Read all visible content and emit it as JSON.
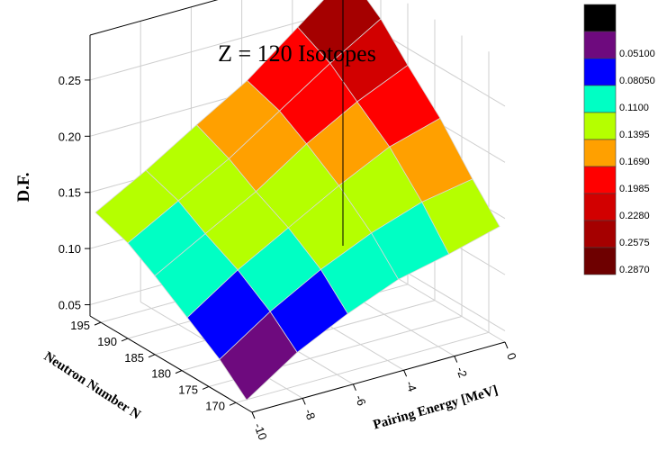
{
  "chart_data": {
    "type": "surface3d",
    "title": "Z = 120 Isotopes",
    "zlabel": "D.F.",
    "xlabel": "Pairing Energy [MeV]",
    "ylabel": "Neutron Number N",
    "x_ticks": [
      "-10",
      "-8",
      "-6",
      "-4",
      "-2",
      "0"
    ],
    "y_ticks": [
      "170",
      "175",
      "180",
      "185",
      "190",
      "195"
    ],
    "z_ticks": [
      "0.05",
      "0.10",
      "0.15",
      "0.20",
      "0.25"
    ],
    "xlim": [
      -10,
      0
    ],
    "ylim": [
      167,
      197
    ],
    "zlim": [
      0.04,
      0.29
    ],
    "grid": true,
    "legend_position": "right",
    "colormap_levels": [
      {
        "label": "",
        "color": "#000000"
      },
      {
        "label": "0.05100",
        "color": "#6e0a7e"
      },
      {
        "label": "0.08050",
        "color": "#0000ff"
      },
      {
        "label": "0.1100",
        "color": "#00ffc4"
      },
      {
        "label": "0.1395",
        "color": "#b5ff00"
      },
      {
        "label": "0.1690",
        "color": "#ffa000"
      },
      {
        "label": "0.1985",
        "color": "#ff0000"
      },
      {
        "label": "0.2280",
        "color": "#d20000"
      },
      {
        "label": "0.2575",
        "color": "#a50000"
      },
      {
        "label": "0.2870",
        "color": "#6e0000"
      }
    ],
    "band_thresholds": [
      0.0805,
      0.11,
      0.1395,
      0.169,
      0.1985,
      0.228,
      0.2575
    ],
    "band_colors": [
      "#6e0a7e",
      "#0000ff",
      "#00ffc4",
      "#b5ff00",
      "#ffa000",
      "#ff0000",
      "#d20000",
      "#a50000",
      "#6e0000"
    ],
    "surface": {
      "x": [
        -10,
        -8,
        -6,
        -4,
        -2,
        0
      ],
      "y": [
        168,
        173,
        179,
        185,
        190,
        196
      ],
      "z": [
        [
          0.048,
          0.078,
          0.1,
          0.118,
          0.128,
          0.14
        ],
        [
          0.07,
          0.1,
          0.125,
          0.145,
          0.16,
          0.168
        ],
        [
          0.09,
          0.12,
          0.145,
          0.17,
          0.192,
          0.205
        ],
        [
          0.11,
          0.135,
          0.16,
          0.19,
          0.215,
          0.235
        ],
        [
          0.125,
          0.15,
          0.175,
          0.205,
          0.235,
          0.262
        ],
        [
          0.135,
          0.16,
          0.188,
          0.215,
          0.25,
          0.285
        ]
      ]
    }
  }
}
